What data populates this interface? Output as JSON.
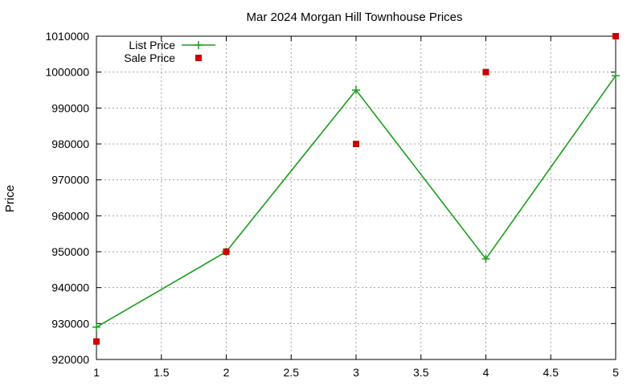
{
  "chart_data": {
    "type": "line",
    "title": "Mar 2024 Morgan Hill Townhouse Prices",
    "xlabel": "",
    "ylabel": "Price",
    "xlim": [
      1,
      5
    ],
    "ylim": [
      920000,
      1010000
    ],
    "x_ticks": [
      "1",
      "1.5",
      "2",
      "2.5",
      "3",
      "3.5",
      "4",
      "4.5",
      "5"
    ],
    "y_ticks": [
      "920000",
      "930000",
      "940000",
      "950000",
      "960000",
      "970000",
      "980000",
      "990000",
      "1000000",
      "1010000"
    ],
    "grid": true,
    "legend_position": "top-left",
    "series": [
      {
        "name": "List Price",
        "style": "line-with-plus-markers",
        "color": "#1a9e1a",
        "x": [
          1,
          2,
          3,
          4,
          5
        ],
        "y": [
          929000,
          950000,
          995000,
          948000,
          999000
        ]
      },
      {
        "name": "Sale Price",
        "style": "square-markers",
        "color": "#cc0000",
        "x": [
          1,
          2,
          3,
          4,
          5
        ],
        "y": [
          925000,
          950000,
          980000,
          1000000,
          1010000
        ]
      }
    ]
  }
}
